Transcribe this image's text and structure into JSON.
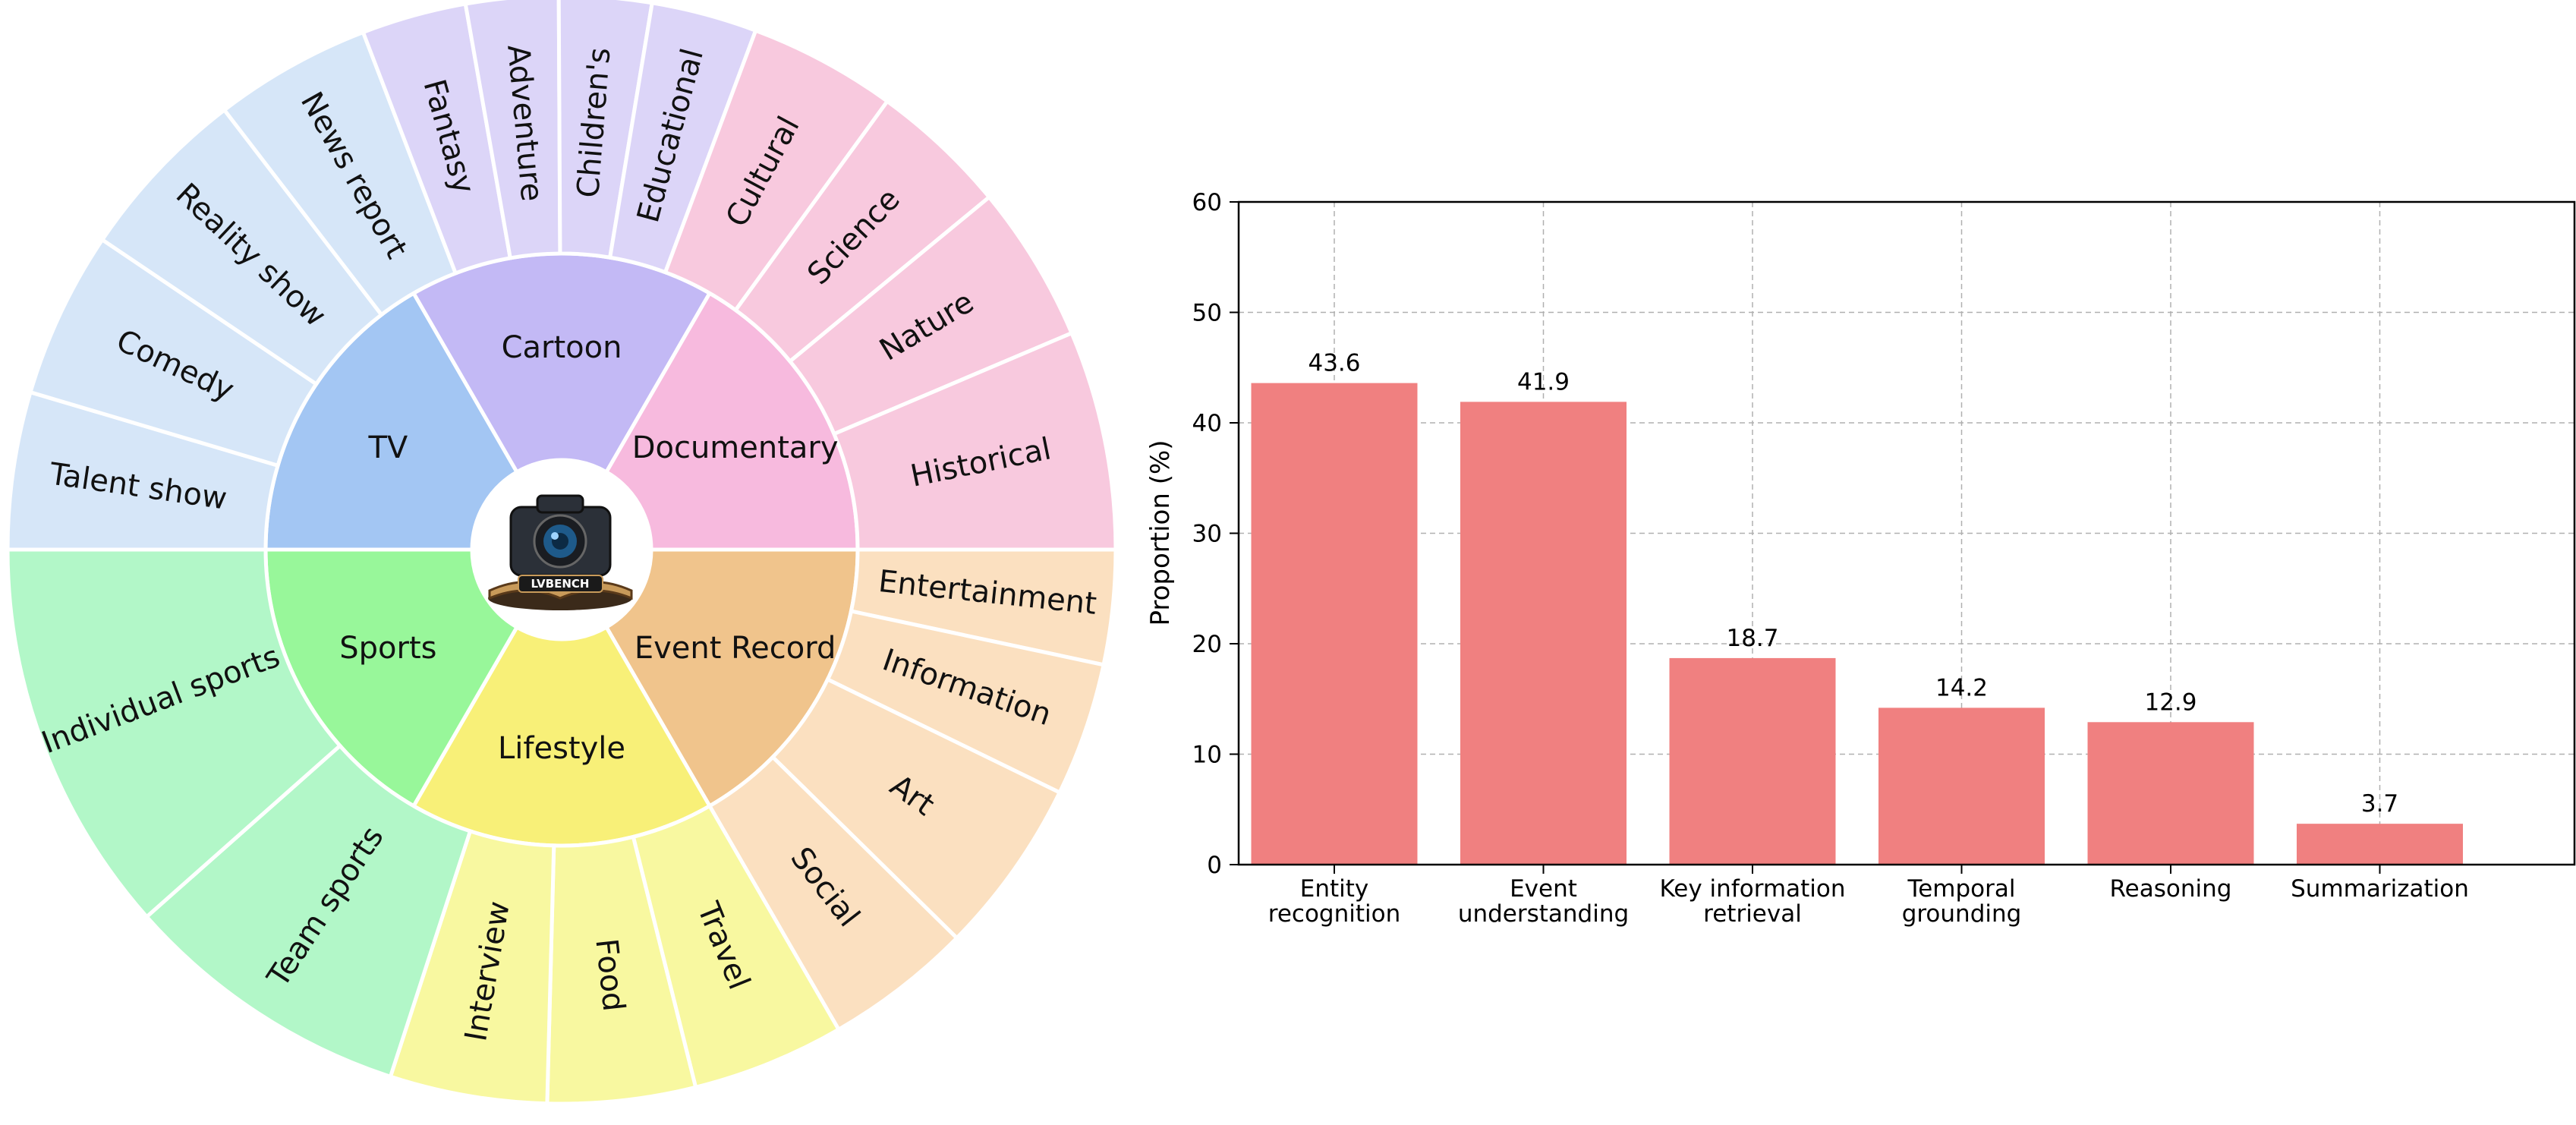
{
  "sunburst": {
    "logo_text": "LVBENCH",
    "inner": [
      {
        "label": "TV",
        "color": "#a3c6f3"
      },
      {
        "label": "Cartoon",
        "color": "#c3b9f5"
      },
      {
        "label": "Documentary",
        "color": "#f7bade"
      },
      {
        "label": "Event Record",
        "color": "#f0c48c"
      },
      {
        "label": "Lifestyle",
        "color": "#f8f078"
      },
      {
        "label": "Sports",
        "color": "#98f79a"
      }
    ],
    "outer": [
      {
        "label": "Talent show",
        "parent": 0,
        "color": "#d6e6f8"
      },
      {
        "label": "Comedy",
        "parent": 0,
        "color": "#d6e6f8"
      },
      {
        "label": "Reality show",
        "parent": 0,
        "color": "#d6e6f8"
      },
      {
        "label": "News report",
        "parent": 0,
        "color": "#d6e6f8"
      },
      {
        "label": "Fantasy",
        "parent": 1,
        "color": "#dcd5f8"
      },
      {
        "label": "Adventure",
        "parent": 1,
        "color": "#dcd5f8"
      },
      {
        "label": "Children's",
        "parent": 1,
        "color": "#dcd5f8"
      },
      {
        "label": "Educational",
        "parent": 1,
        "color": "#dcd5f8"
      },
      {
        "label": "Cultural",
        "parent": 2,
        "color": "#f8c9de"
      },
      {
        "label": "Science",
        "parent": 2,
        "color": "#f8c9de"
      },
      {
        "label": "Nature",
        "parent": 2,
        "color": "#f8c9de"
      },
      {
        "label": "Historical",
        "parent": 2,
        "color": "#f8c9de"
      },
      {
        "label": "Entertainment",
        "parent": 3,
        "color": "#fbe0c0"
      },
      {
        "label": "Information",
        "parent": 3,
        "color": "#fbe0c0"
      },
      {
        "label": "Art",
        "parent": 3,
        "color": "#fbe0c0"
      },
      {
        "label": "Social",
        "parent": 3,
        "color": "#fbe0c0"
      },
      {
        "label": "Travel",
        "parent": 4,
        "color": "#f8f8a0"
      },
      {
        "label": "Food",
        "parent": 4,
        "color": "#f8f8a0"
      },
      {
        "label": "Interview",
        "parent": 4,
        "color": "#f8f8a0"
      },
      {
        "label": "Team sports",
        "parent": 5,
        "color": "#b2f7c8"
      },
      {
        "label": "Individual sports",
        "parent": 5,
        "color": "#b2f7c8"
      }
    ]
  },
  "chart_data": {
    "type": "bar",
    "categories": [
      "Entity\nrecognition",
      "Event\nunderstanding",
      "Key information\nretrieval",
      "Temporal\ngrounding",
      "Reasoning",
      "Summarization"
    ],
    "values": [
      43.6,
      41.9,
      18.7,
      14.2,
      12.9,
      3.7
    ],
    "value_labels": [
      "43.6",
      "41.9",
      "18.7",
      "14.2",
      "12.9",
      "3.7"
    ],
    "ylabel": "Proportion (%)",
    "xlabel": "",
    "ylim": [
      0,
      60
    ],
    "yticks": [
      0,
      10,
      20,
      30,
      40,
      50,
      60
    ],
    "grid": true,
    "bar_color": "#f08080"
  }
}
